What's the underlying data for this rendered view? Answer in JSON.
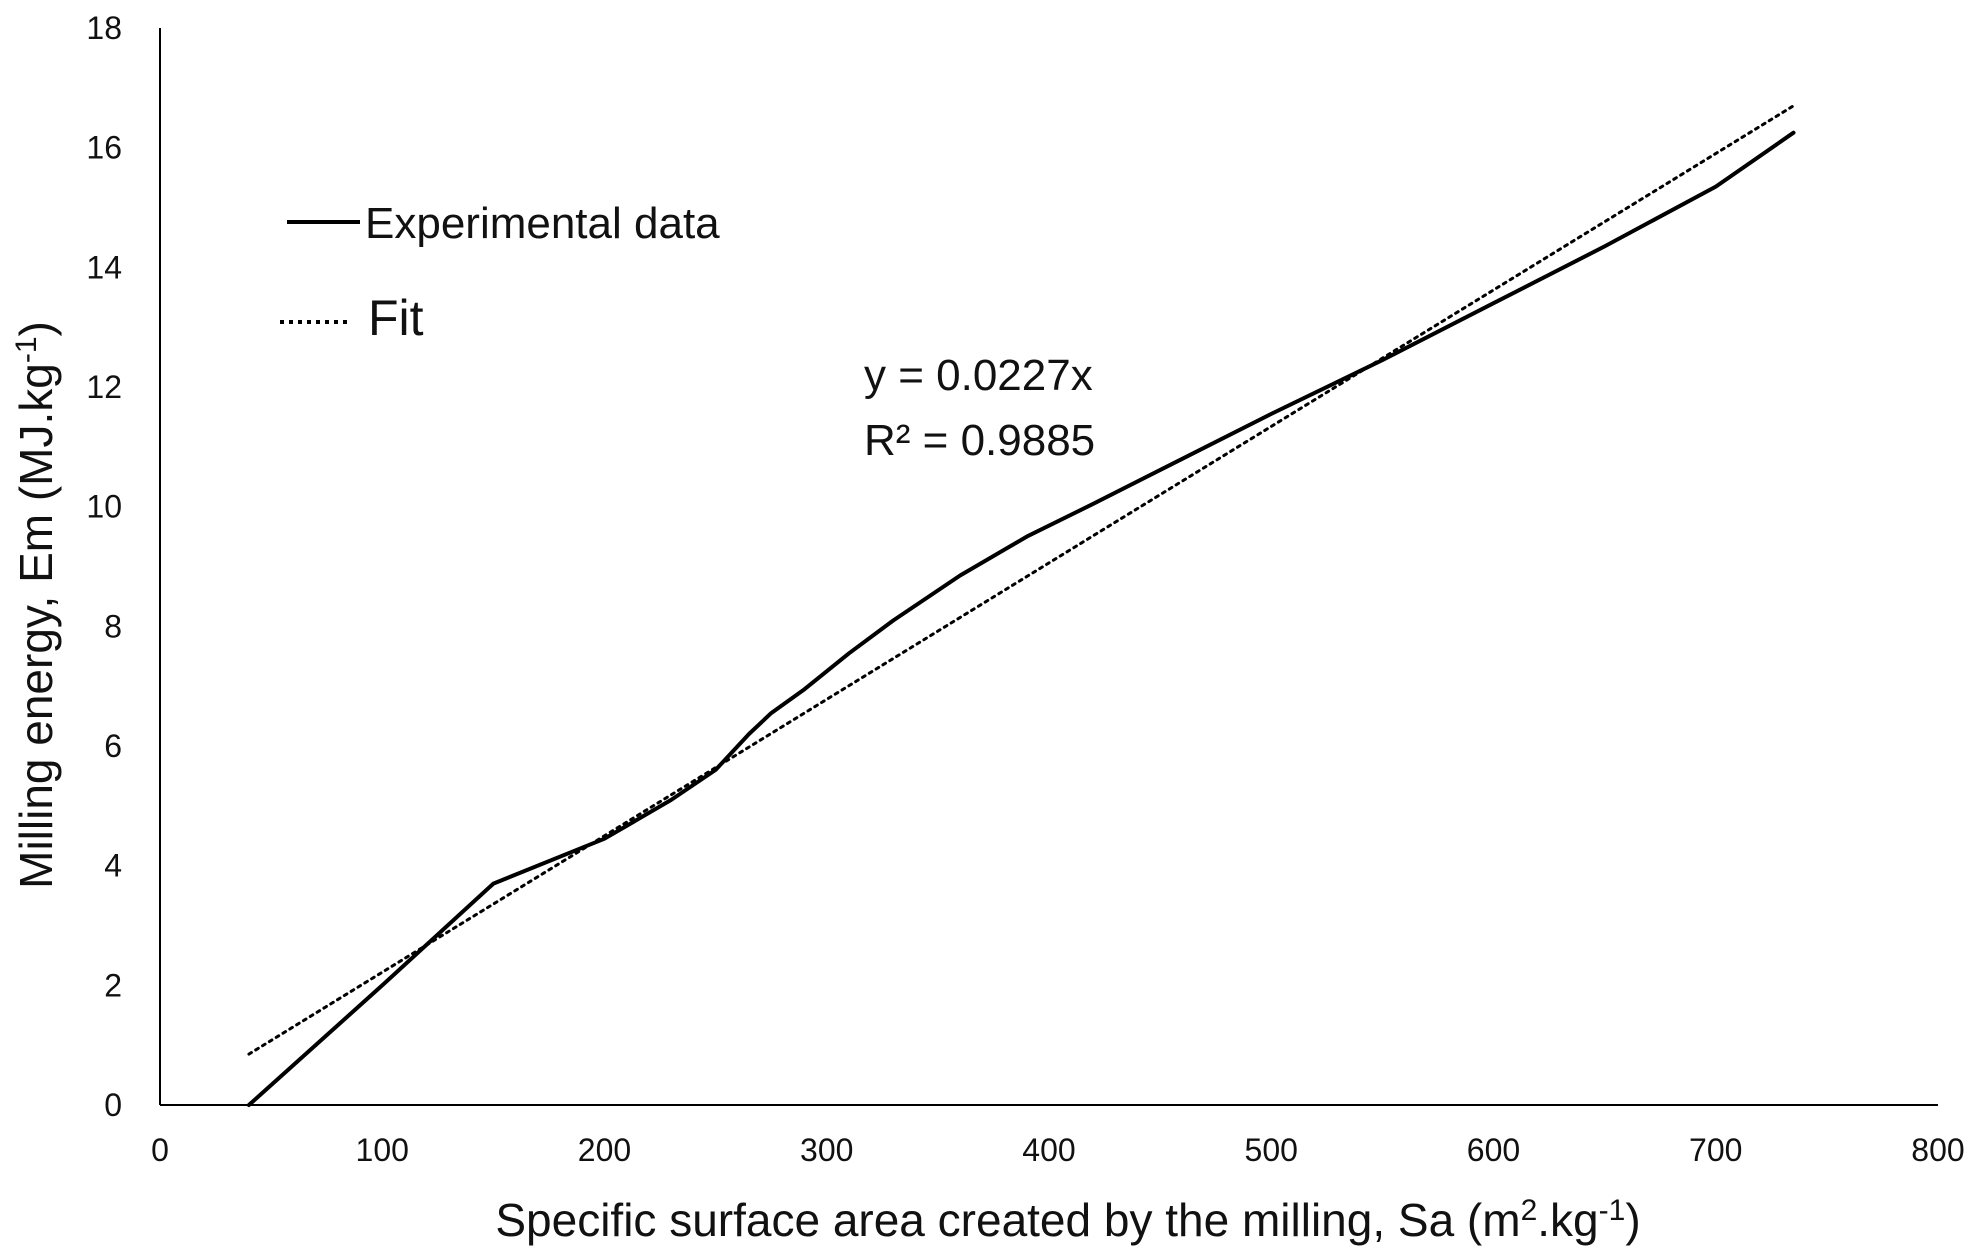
{
  "chart_data": {
    "type": "line",
    "xlabel_main": "Specific surface area created by the milling, Sa (m",
    "xlabel_sup1": "2",
    "xlabel_mid": ".kg",
    "xlabel_sup2": "-1",
    "xlabel_end": ")",
    "ylabel_main": "Milling energy, Em (MJ.kg",
    "ylabel_sup": "-1",
    "ylabel_end": ")",
    "xlim": [
      0,
      800
    ],
    "ylim": [
      0,
      18
    ],
    "x_ticks": [
      0,
      100,
      200,
      300,
      400,
      500,
      600,
      700,
      800
    ],
    "y_ticks": [
      0,
      2,
      4,
      6,
      8,
      10,
      12,
      14,
      16,
      18
    ],
    "grid": false,
    "legend_position": "top-left",
    "series": [
      {
        "name": "Experimental data",
        "style": "solid",
        "color": "#000000",
        "x": [
          40,
          100,
          150,
          200,
          230,
          250,
          265,
          275,
          290,
          310,
          330,
          360,
          390,
          420,
          460,
          500,
          550,
          600,
          650,
          700,
          735
        ],
        "y": [
          0,
          2.0,
          3.7,
          4.45,
          5.1,
          5.6,
          6.2,
          6.55,
          6.95,
          7.55,
          8.1,
          8.85,
          9.5,
          10.05,
          10.8,
          11.55,
          12.45,
          13.4,
          14.35,
          15.35,
          16.25
        ]
      },
      {
        "name": "Fit",
        "style": "dotted",
        "color": "#000000",
        "x": [
          40,
          735
        ],
        "y": [
          0.85,
          16.7
        ]
      }
    ],
    "annotations": {
      "equation": "y = 0.0227x",
      "r2_label": "R² = 0.9885"
    }
  }
}
